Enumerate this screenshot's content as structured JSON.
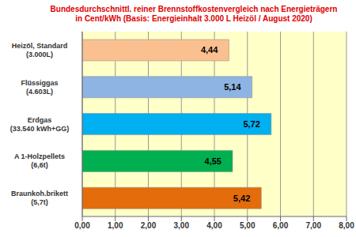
{
  "chart_data": {
    "type": "bar",
    "orientation": "horizontal",
    "title": "Bundesdurchschnittl.  reiner Brennstoffkostenvergleich nach Energieträgern\nin Cent/kWh (Basis: Energieinhalt  3.000 L Heizöl / August  2020)",
    "categories": [
      "Heizöl, Standard\n(3.000L)",
      "Flüssiggas\n(4.603L)",
      "Erdgas\n(33.540 kWh+GG)",
      "A 1-Holzpellets\n(6,6t)",
      "Braunkoh.brikett\n(5,7t)"
    ],
    "values": [
      4.44,
      5.14,
      5.72,
      4.55,
      5.42
    ],
    "value_labels": [
      "4,44",
      "5,14",
      "5,72",
      "4,55",
      "5,42"
    ],
    "colors": [
      "#fac090",
      "#8eb4e3",
      "#00b0f0",
      "#00b050",
      "#e46c0a"
    ],
    "xlim": [
      0,
      8
    ],
    "xticks": [
      {
        "value": 0,
        "label": "0,00"
      },
      {
        "value": 1,
        "label": "1,00"
      },
      {
        "value": 2,
        "label": "2,00"
      },
      {
        "value": 3,
        "label": "3,00"
      },
      {
        "value": 4,
        "label": "4,00"
      },
      {
        "value": 5,
        "label": "5,00"
      },
      {
        "value": 6,
        "label": "6,00"
      },
      {
        "value": 7,
        "label": "7,00"
      },
      {
        "value": 8,
        "label": "8,00"
      }
    ],
    "grid": true,
    "data_labels": true
  }
}
